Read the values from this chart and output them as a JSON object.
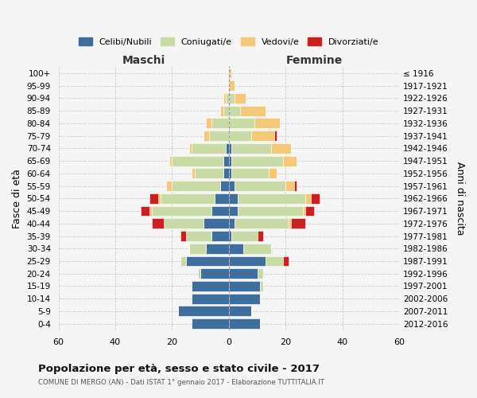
{
  "age_groups": [
    "0-4",
    "5-9",
    "10-14",
    "15-19",
    "20-24",
    "25-29",
    "30-34",
    "35-39",
    "40-44",
    "45-49",
    "50-54",
    "55-59",
    "60-64",
    "65-69",
    "70-74",
    "75-79",
    "80-84",
    "85-89",
    "90-94",
    "95-99",
    "100+"
  ],
  "birth_years": [
    "2012-2016",
    "2007-2011",
    "2002-2006",
    "1997-2001",
    "1992-1996",
    "1987-1991",
    "1982-1986",
    "1977-1981",
    "1972-1976",
    "1967-1971",
    "1962-1966",
    "1957-1961",
    "1952-1956",
    "1947-1951",
    "1942-1946",
    "1937-1941",
    "1932-1936",
    "1927-1931",
    "1922-1926",
    "1917-1921",
    "≤ 1916"
  ],
  "colors": {
    "celibi": "#3d6e9e",
    "coniugati": "#c8dba4",
    "vedovi": "#f5c878",
    "divorziati": "#cc2020"
  },
  "maschi": {
    "celibi": [
      13,
      18,
      13,
      13,
      10,
      15,
      8,
      6,
      9,
      6,
      5,
      3,
      2,
      2,
      1,
      0,
      0,
      0,
      0,
      0,
      0
    ],
    "coniugati": [
      0,
      0,
      0,
      0,
      1,
      2,
      6,
      9,
      14,
      21,
      19,
      17,
      10,
      18,
      12,
      7,
      6,
      2,
      1,
      0,
      0
    ],
    "vedovi": [
      0,
      0,
      0,
      0,
      0,
      0,
      0,
      0,
      0,
      1,
      1,
      2,
      1,
      1,
      1,
      2,
      2,
      1,
      1,
      0,
      0
    ],
    "divorziati": [
      0,
      0,
      0,
      0,
      0,
      0,
      0,
      2,
      4,
      3,
      3,
      0,
      0,
      0,
      0,
      0,
      0,
      0,
      0,
      0,
      0
    ]
  },
  "femmine": {
    "nubili": [
      11,
      8,
      11,
      11,
      10,
      13,
      5,
      1,
      2,
      3,
      3,
      2,
      1,
      1,
      1,
      0,
      0,
      0,
      0,
      0,
      0
    ],
    "coniugate": [
      0,
      0,
      0,
      1,
      2,
      6,
      10,
      9,
      19,
      23,
      24,
      18,
      13,
      18,
      14,
      8,
      9,
      4,
      2,
      0,
      0
    ],
    "vedove": [
      0,
      0,
      0,
      0,
      0,
      0,
      0,
      0,
      1,
      1,
      2,
      3,
      3,
      5,
      7,
      8,
      9,
      9,
      4,
      2,
      1
    ],
    "divorziate": [
      0,
      0,
      0,
      0,
      0,
      2,
      0,
      2,
      5,
      3,
      3,
      1,
      0,
      0,
      0,
      1,
      0,
      0,
      0,
      0,
      0
    ]
  },
  "xlim": 60,
  "title": "Popolazione per età, sesso e stato civile - 2017",
  "subtitle": "COMUNE DI MERGO (AN) - Dati ISTAT 1° gennaio 2017 - Elaborazione TUTTITALIA.IT",
  "xlabel_left": "Maschi",
  "xlabel_right": "Femmine",
  "ylabel": "Fasce di età",
  "ylabel_right": "Anni di nascita",
  "legend_labels": [
    "Celibi/Nubili",
    "Coniugati/e",
    "Vedovi/e",
    "Divorziati/e"
  ],
  "background_color": "#f5f5f5",
  "bar_height": 0.82
}
